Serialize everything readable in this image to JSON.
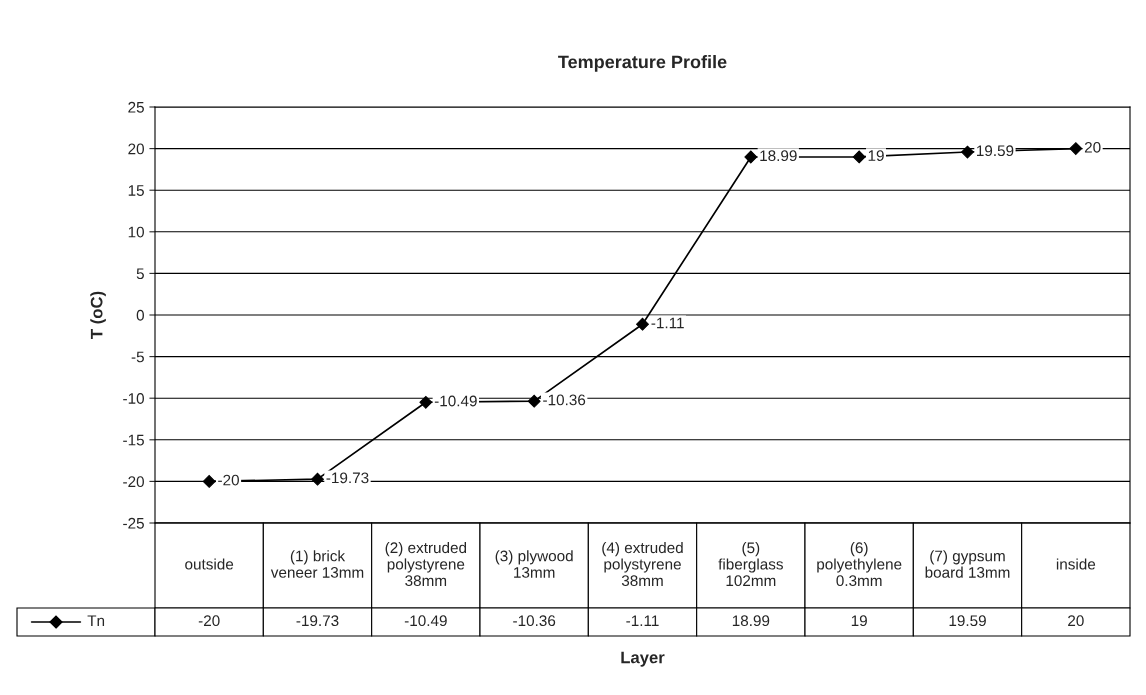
{
  "chart_data": {
    "type": "line",
    "title": "Temperature Profile",
    "xlabel": "Layer",
    "ylabel": "T (oC)",
    "categories": [
      "outside",
      "(1) brick veneer 13mm",
      "(2) extruded polystyrene 38mm",
      "(3) plywood 13mm",
      "(4) extruded polystyrene 38mm",
      "(5) fiberglass 102mm",
      "(6) polyethylene 0.3mm",
      "(7) gypsum board 13mm",
      "inside"
    ],
    "series": [
      {
        "name": "Tn",
        "color": "#000000",
        "values": [
          -20,
          -19.73,
          -10.49,
          -10.36,
          -1.11,
          18.99,
          19,
          19.59,
          20
        ],
        "value_labels": [
          "-20",
          "-19.73",
          "-10.49",
          "-10.36",
          "-1.11",
          "18.99",
          "19",
          "19.59",
          "20"
        ]
      }
    ],
    "ylim": [
      -25,
      25
    ],
    "yticks": [
      -25,
      -20,
      -15,
      -10,
      -5,
      0,
      5,
      10,
      15,
      20,
      25
    ],
    "annotations": [
      "-20",
      "-19.73",
      "-10.49",
      "-10.36",
      "-1.11",
      "18.99",
      "19",
      "19.59",
      "20"
    ],
    "grid": "y",
    "marker": "diamond",
    "line_style": "solid",
    "data_labels": true,
    "legend": "bottom"
  }
}
